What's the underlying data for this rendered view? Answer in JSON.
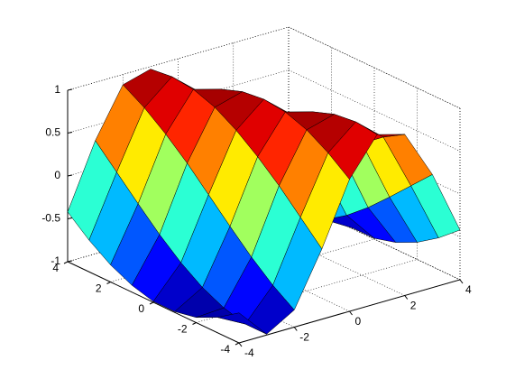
{
  "chart_data": {
    "type": "surface",
    "x": [
      -4,
      -3,
      -2,
      -1,
      0,
      1,
      2,
      3,
      4
    ],
    "y": [
      -4,
      -3,
      -2,
      -1,
      0,
      1,
      2,
      3,
      4
    ],
    "z": [
      [
        -0.65,
        -0.99,
        -0.8,
        -0.18,
        0.54,
        0.97,
        0.88,
        0.32,
        -0.42
      ],
      [
        -0.82,
        -0.99,
        -0.63,
        0.07,
        0.73,
        1.0,
        0.73,
        0.07,
        -0.63
      ],
      [
        -0.94,
        -0.92,
        -0.42,
        0.32,
        0.88,
        0.97,
        0.54,
        -0.18,
        -0.8
      ],
      [
        -0.99,
        -0.8,
        -0.18,
        0.54,
        0.97,
        0.88,
        0.32,
        -0.42,
        -0.92
      ],
      [
        -0.99,
        -0.63,
        0.07,
        0.73,
        1.0,
        0.73,
        0.07,
        -0.63,
        -0.99
      ],
      [
        -0.92,
        -0.42,
        0.32,
        0.88,
        0.97,
        0.54,
        -0.18,
        -0.8,
        -0.99
      ],
      [
        -0.8,
        -0.18,
        0.54,
        0.97,
        0.88,
        0.32,
        -0.42,
        -0.92,
        -0.94
      ],
      [
        -0.63,
        0.07,
        0.73,
        1.0,
        0.73,
        0.07,
        -0.63,
        -0.99,
        -0.82
      ],
      [
        -0.42,
        0.32,
        0.88,
        0.97,
        0.54,
        -0.18,
        -0.8,
        -0.99,
        -0.65
      ]
    ],
    "xlim": [
      -4,
      4
    ],
    "ylim": [
      -4,
      4
    ],
    "zlim": [
      -1,
      1
    ],
    "xticks": [
      -4,
      -2,
      0,
      2,
      4
    ],
    "yticks": [
      -4,
      -2,
      0,
      2,
      4
    ],
    "zticks": [
      -1,
      -0.5,
      0,
      0.5,
      1
    ],
    "colormap": "jet",
    "edgecolor": "#000000",
    "grid": true
  }
}
